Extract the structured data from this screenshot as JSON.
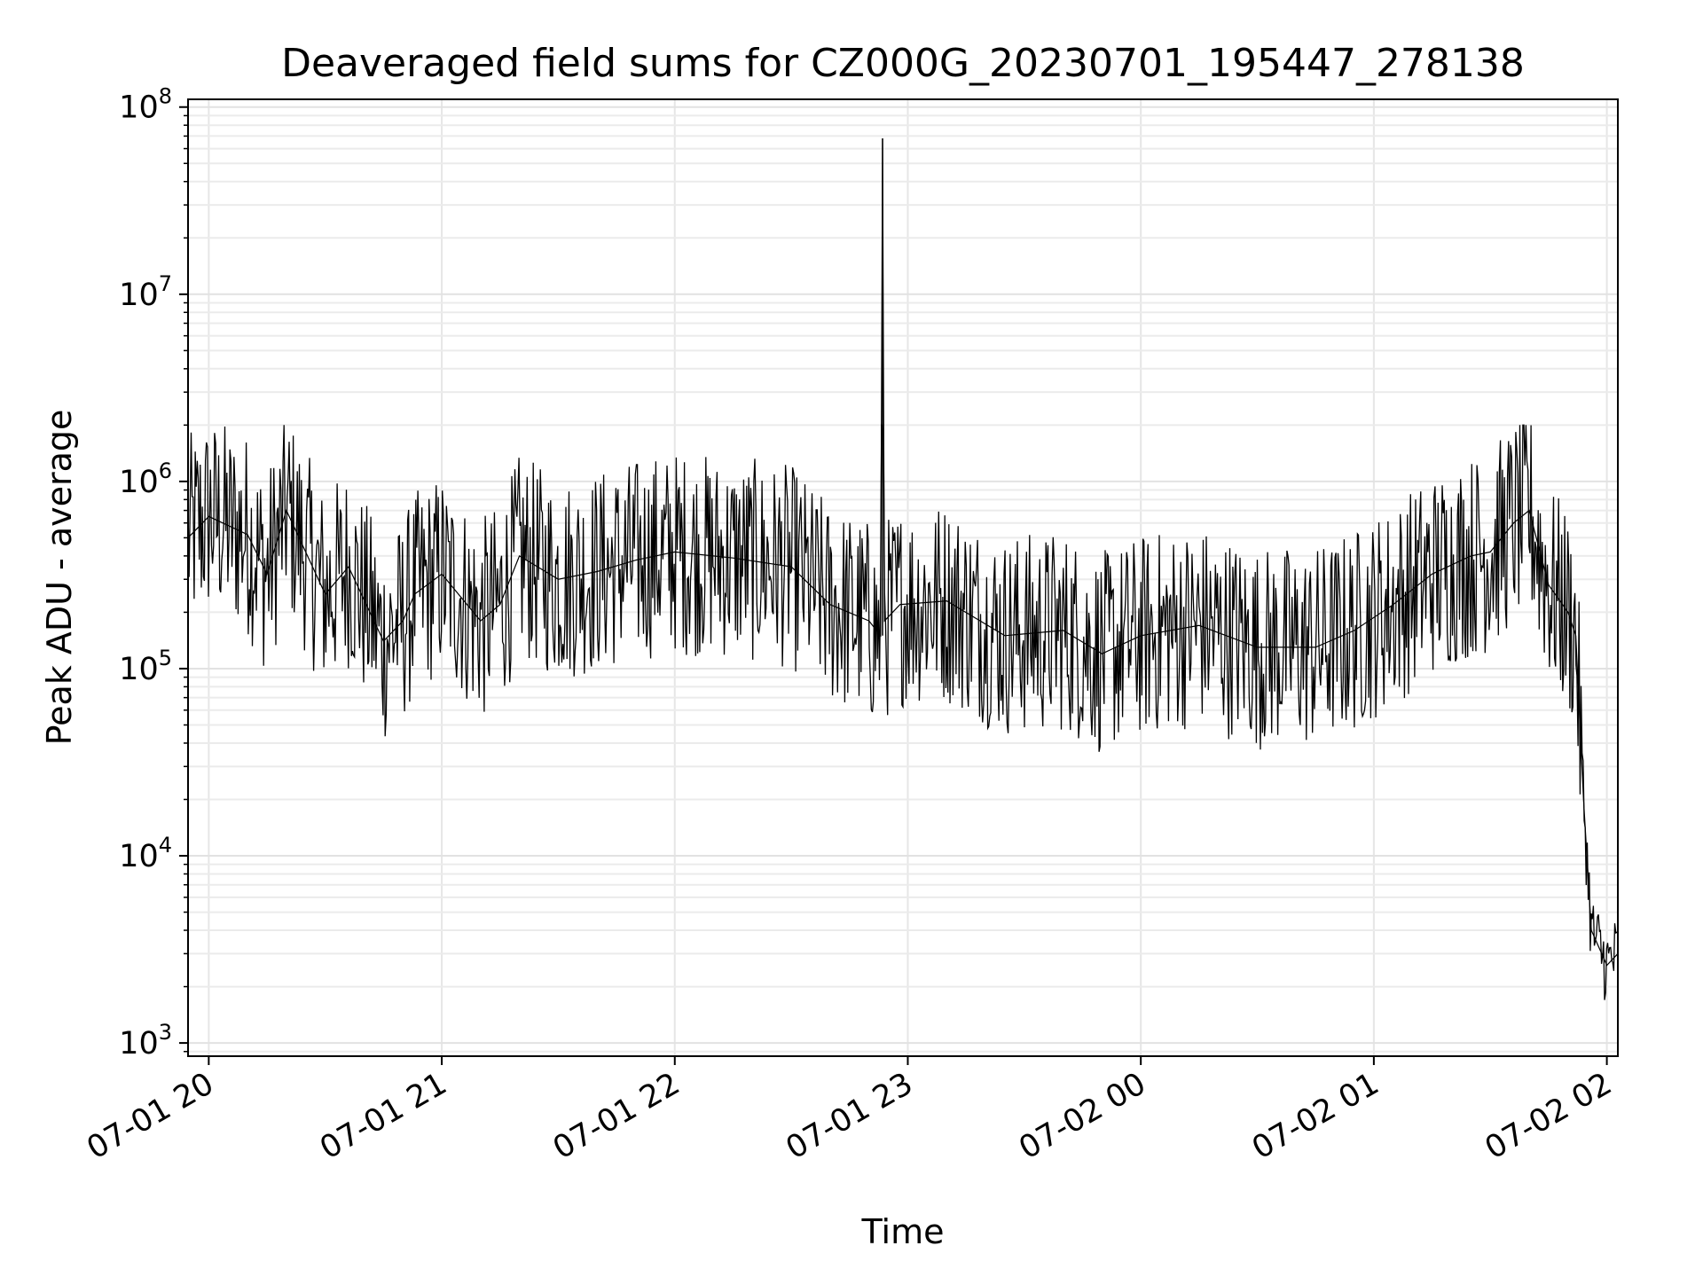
{
  "chart_data": {
    "type": "line",
    "title": "Deaveraged field sums for CZ000G_20230701_195447_278138",
    "xlabel": "Time",
    "ylabel": "Peak ADU - average",
    "yscale": "log",
    "ylim": [
      850,
      110000000
    ],
    "xlim": [
      "2023-07-01 19:54:40",
      "2023-07-02 02:02:50"
    ],
    "grid": true,
    "x_ticks": [
      {
        "label": "07-01 20",
        "time": "2023-07-01 20:00"
      },
      {
        "label": "07-01 21",
        "time": "2023-07-01 21:00"
      },
      {
        "label": "07-01 22",
        "time": "2023-07-01 22:00"
      },
      {
        "label": "07-01 23",
        "time": "2023-07-01 23:00"
      },
      {
        "label": "07-02 00",
        "time": "2023-07-02 00:00"
      },
      {
        "label": "07-02 01",
        "time": "2023-07-02 01:00"
      },
      {
        "label": "07-02 02",
        "time": "2023-07-02 02:00"
      }
    ],
    "y_ticks": [
      {
        "base": "10",
        "exp": "3",
        "value": 1000
      },
      {
        "base": "10",
        "exp": "4",
        "value": 10000
      },
      {
        "base": "10",
        "exp": "5",
        "value": 100000
      },
      {
        "base": "10",
        "exp": "6",
        "value": 1000000
      },
      {
        "base": "10",
        "exp": "7",
        "value": 10000000
      },
      {
        "base": "10",
        "exp": "8",
        "value": 100000000
      }
    ],
    "series": [
      {
        "color": "#000000",
        "x": [
          "2023-07-01 19:54:40",
          "2023-07-01 20:00:00",
          "2023-07-01 20:10:00",
          "2023-07-01 20:15:00",
          "2023-07-01 20:20:00",
          "2023-07-01 20:30:00",
          "2023-07-01 20:36:00",
          "2023-07-01 20:45:00",
          "2023-07-01 20:50:00",
          "2023-07-01 20:53:00",
          "2023-07-01 21:00:00",
          "2023-07-01 21:10:00",
          "2023-07-01 21:15:00",
          "2023-07-01 21:20:00",
          "2023-07-01 21:30:00",
          "2023-07-01 21:40:00",
          "2023-07-01 21:50:00",
          "2023-07-01 22:00:00",
          "2023-07-01 22:15:00",
          "2023-07-01 22:30:00",
          "2023-07-01 22:40:00",
          "2023-07-01 22:50:00",
          "2023-07-01 22:53:00",
          "2023-07-01 22:53:30",
          "2023-07-01 22:54:00",
          "2023-07-01 22:58:00",
          "2023-07-01 23:10:00",
          "2023-07-01 23:25:00",
          "2023-07-01 23:40:00",
          "2023-07-01 23:50:00",
          "2023-07-02 00:00:00",
          "2023-07-02 00:15:00",
          "2023-07-02 00:30:00",
          "2023-07-02 00:45:00",
          "2023-07-02 00:55:00",
          "2023-07-02 01:05:00",
          "2023-07-02 01:15:00",
          "2023-07-02 01:25:00",
          "2023-07-02 01:30:00",
          "2023-07-02 01:36:00",
          "2023-07-02 01:40:00",
          "2023-07-02 01:45:00",
          "2023-07-02 01:50:00",
          "2023-07-02 01:52:00",
          "2023-07-02 01:54:00",
          "2023-07-02 01:56:00",
          "2023-07-02 02:00:00",
          "2023-07-02 02:02:50"
        ],
        "y": [
          500000,
          650000,
          520000,
          320000,
          700000,
          250000,
          350000,
          140000,
          180000,
          250000,
          320000,
          180000,
          220000,
          400000,
          300000,
          330000,
          380000,
          420000,
          390000,
          350000,
          220000,
          180000,
          150000,
          68000000,
          180000,
          220000,
          230000,
          150000,
          160000,
          120000,
          150000,
          170000,
          130000,
          130000,
          160000,
          220000,
          320000,
          400000,
          420000,
          600000,
          700000,
          280000,
          200000,
          150000,
          20000,
          4000,
          2600,
          3000
        ]
      }
    ]
  }
}
